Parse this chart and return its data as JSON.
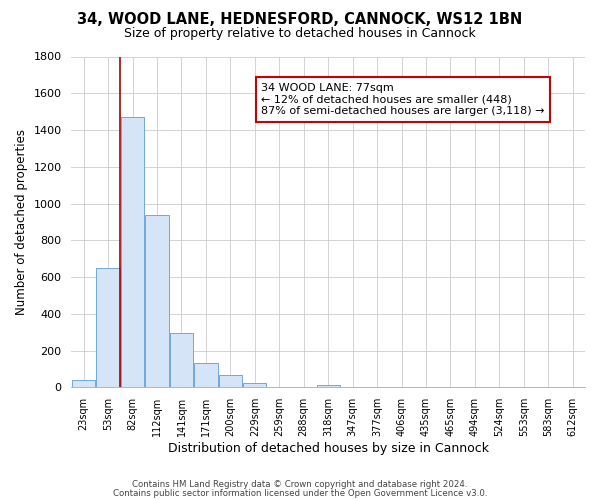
{
  "title_line1": "34, WOOD LANE, HEDNESFORD, CANNOCK, WS12 1BN",
  "title_line2": "Size of property relative to detached houses in Cannock",
  "xlabel": "Distribution of detached houses by size in Cannock",
  "ylabel": "Number of detached properties",
  "bar_labels": [
    "23sqm",
    "53sqm",
    "82sqm",
    "112sqm",
    "141sqm",
    "171sqm",
    "200sqm",
    "229sqm",
    "259sqm",
    "288sqm",
    "318sqm",
    "347sqm",
    "377sqm",
    "406sqm",
    "435sqm",
    "465sqm",
    "494sqm",
    "524sqm",
    "553sqm",
    "583sqm",
    "612sqm"
  ],
  "bar_values": [
    40,
    650,
    1470,
    935,
    295,
    130,
    65,
    22,
    0,
    0,
    15,
    0,
    0,
    0,
    0,
    0,
    0,
    0,
    0,
    0,
    0
  ],
  "bar_color": "#d6e4f7",
  "bar_edge_color": "#6fa8dc",
  "ylim": [
    0,
    1800
  ],
  "yticks": [
    0,
    200,
    400,
    600,
    800,
    1000,
    1200,
    1400,
    1600,
    1800
  ],
  "vline_x": 1.5,
  "vline_color": "#aa0000",
  "annotation_title": "34 WOOD LANE: 77sqm",
  "annotation_line1": "← 12% of detached houses are smaller (448)",
  "annotation_line2": "87% of semi-detached houses are larger (3,118) →",
  "footnote1": "Contains HM Land Registry data © Crown copyright and database right 2024.",
  "footnote2": "Contains public sector information licensed under the Open Government Licence v3.0.",
  "bg_color": "#ffffff",
  "grid_color": "#cccccc"
}
